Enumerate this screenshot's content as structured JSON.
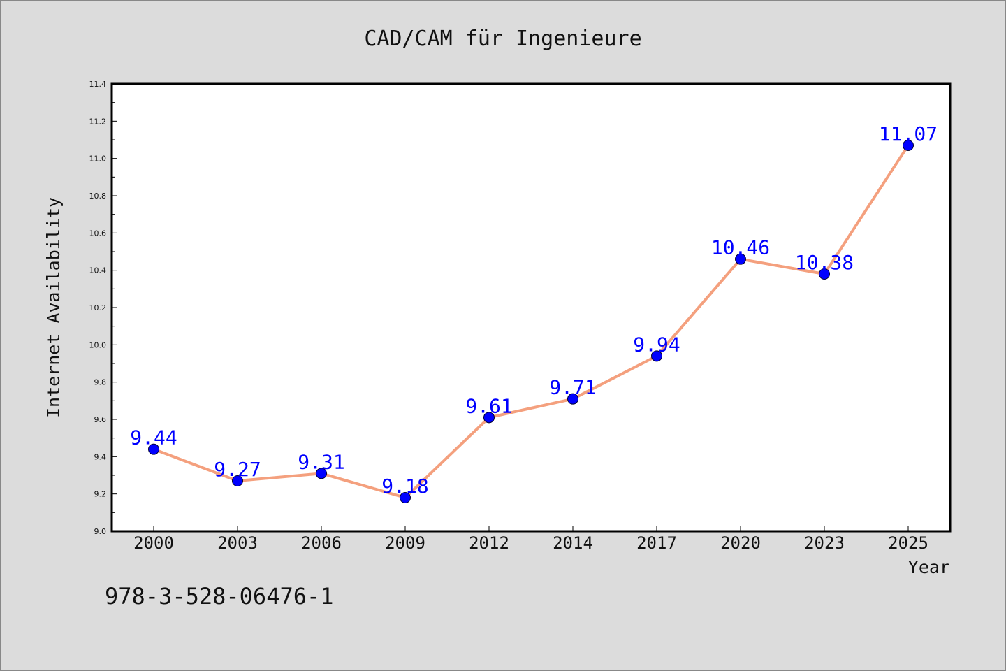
{
  "chart_data": {
    "type": "line",
    "title": "CAD/CAM für Ingenieure",
    "xlabel": "Year",
    "ylabel": "Internet Availability",
    "categories": [
      "2000",
      "2003",
      "2006",
      "2009",
      "2012",
      "2014",
      "2017",
      "2020",
      "2023",
      "2025"
    ],
    "series": [
      {
        "values": [
          9.44,
          9.27,
          9.31,
          9.18,
          9.61,
          9.71,
          9.94,
          10.46,
          10.38,
          11.07
        ],
        "labels": [
          "9.44",
          "9.27",
          "9.31",
          "9.18",
          "9.61",
          "9.71",
          "9.94",
          "10.46",
          "10.38",
          "11.07"
        ]
      }
    ],
    "ylim": [
      9.0,
      11.4
    ],
    "yticks": [
      "9.0",
      "9.2",
      "9.4",
      "9.6",
      "9.8",
      "10.0",
      "10.2",
      "10.4",
      "10.6",
      "10.8",
      "11.0",
      "11.2",
      "11.4"
    ],
    "grid": false,
    "line_color": "#f4a07e",
    "marker_color": "#0000ff",
    "label_color": "#0000ff",
    "background_color": "#dcdcdc",
    "plot_background": "#ffffff"
  },
  "footnote": "978-3-528-06476-1"
}
